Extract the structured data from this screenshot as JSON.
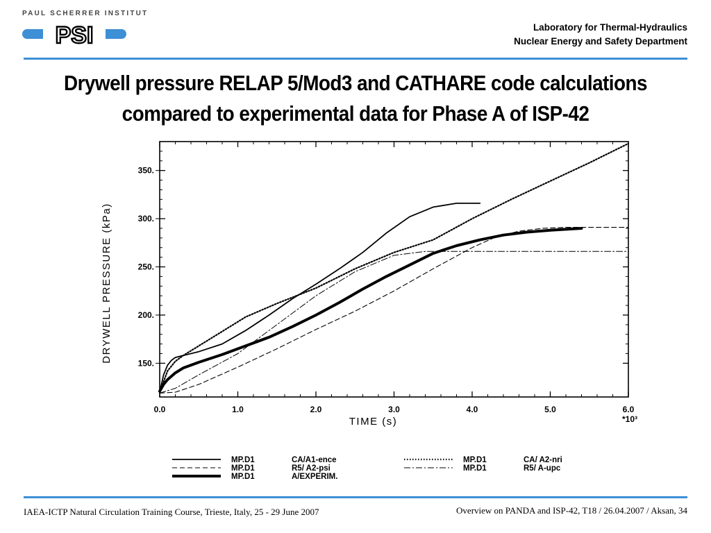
{
  "header": {
    "institute": "PAUL SCHERRER INSTITUT",
    "logo_letters": "PSI",
    "lab": "Laboratory for Thermal-Hydraulics",
    "dept": "Nuclear Energy and Safety Department"
  },
  "title": {
    "line1": "Drywell pressure RELAP 5/Mod3 and CATHARE code calculations",
    "line2": "compared to experimental data for Phase A of ISP-42"
  },
  "footer": {
    "left": "IAEA-ICTP Natural Circulation Training Course, Trieste, Italy, 25 - 29 June 2007",
    "right": "Overview on PANDA and ISP-42, T18  / 26.04.2007 / Aksan, 34"
  },
  "chart_data": {
    "type": "line",
    "xlabel": "TIME  (s)",
    "xlabel_multiplier": "*10³",
    "ylabel": "DRYWELL  PRESSURE  (kPa)",
    "xlim": [
      0,
      6
    ],
    "ylim": [
      115,
      380
    ],
    "x_ticks": [
      "0.0",
      "1.0",
      "2.0",
      "3.0",
      "4.0",
      "5.0",
      "6.0"
    ],
    "y_ticks": [
      "150.",
      "200.",
      "250.",
      "300.",
      "350."
    ],
    "series": [
      {
        "name": "MP.D1  CA/A1-ence",
        "style": "solid",
        "x": [
          0.0,
          0.05,
          0.1,
          0.15,
          0.2,
          0.3,
          0.5,
          0.8,
          1.1,
          1.4,
          1.7,
          2.0,
          2.3,
          2.6,
          2.9,
          3.2,
          3.5,
          3.8,
          4.1
        ],
        "y": [
          120,
          138,
          148,
          153,
          156,
          158,
          162,
          170,
          184,
          200,
          217,
          232,
          248,
          265,
          285,
          302,
          312,
          316,
          316
        ]
      },
      {
        "name": "MP.D1  R5/ A2-psi",
        "style": "dashed",
        "x": [
          0.0,
          0.2,
          0.5,
          1.0,
          1.5,
          2.0,
          2.5,
          3.0,
          3.5,
          4.0,
          4.3,
          4.6,
          4.9,
          5.2,
          5.5,
          6.0
        ],
        "y": [
          119,
          120,
          128,
          146,
          165,
          185,
          204,
          225,
          248,
          270,
          281,
          287,
          290,
          291,
          291,
          291
        ]
      },
      {
        "name": "MP.D1  A/EXPERIM.",
        "style": "thick",
        "x": [
          0.0,
          0.05,
          0.1,
          0.2,
          0.3,
          0.5,
          0.8,
          1.1,
          1.4,
          1.7,
          2.0,
          2.3,
          2.6,
          2.9,
          3.2,
          3.5,
          3.8,
          4.1,
          4.4,
          4.7,
          5.0,
          5.4
        ],
        "y": [
          121,
          128,
          133,
          140,
          145,
          151,
          159,
          168,
          177,
          188,
          200,
          213,
          227,
          240,
          252,
          264,
          272,
          278,
          283,
          286,
          288,
          290
        ]
      },
      {
        "name": "MP.D1  CA/ A2-nri",
        "style": "dotted",
        "x": [
          0.0,
          0.1,
          0.2,
          0.3,
          0.5,
          0.8,
          1.1,
          1.5,
          2.0,
          2.5,
          3.0,
          3.5,
          4.0,
          4.5,
          5.0,
          5.5,
          6.0
        ],
        "y": [
          120,
          142,
          152,
          158,
          168,
          183,
          198,
          212,
          228,
          248,
          265,
          278,
          300,
          320,
          339,
          358,
          378
        ]
      },
      {
        "name": "MP.D1  R5/ A-upc",
        "style": "dashdot",
        "x": [
          0.0,
          0.2,
          0.5,
          1.0,
          1.5,
          2.0,
          2.5,
          3.0,
          3.4,
          4.0,
          5.0,
          6.0
        ],
        "y": [
          119,
          124,
          138,
          160,
          190,
          220,
          245,
          262,
          266,
          266,
          266,
          266
        ]
      }
    ],
    "legend": [
      {
        "style": "solid",
        "label": "MP.D1",
        "label2": "CA/A1-ence"
      },
      {
        "style": "dashed",
        "label": "MP.D1",
        "label2": "R5/  A2-psi"
      },
      {
        "style": "thick",
        "label": "MP.D1",
        "label2": "A/EXPERIM."
      },
      {
        "style": "dotted",
        "label": "MP.D1",
        "label2": "CA/  A2-nri"
      },
      {
        "style": "dashdot",
        "label": "MP.D1",
        "label2": "R5/  A-upc"
      }
    ]
  }
}
